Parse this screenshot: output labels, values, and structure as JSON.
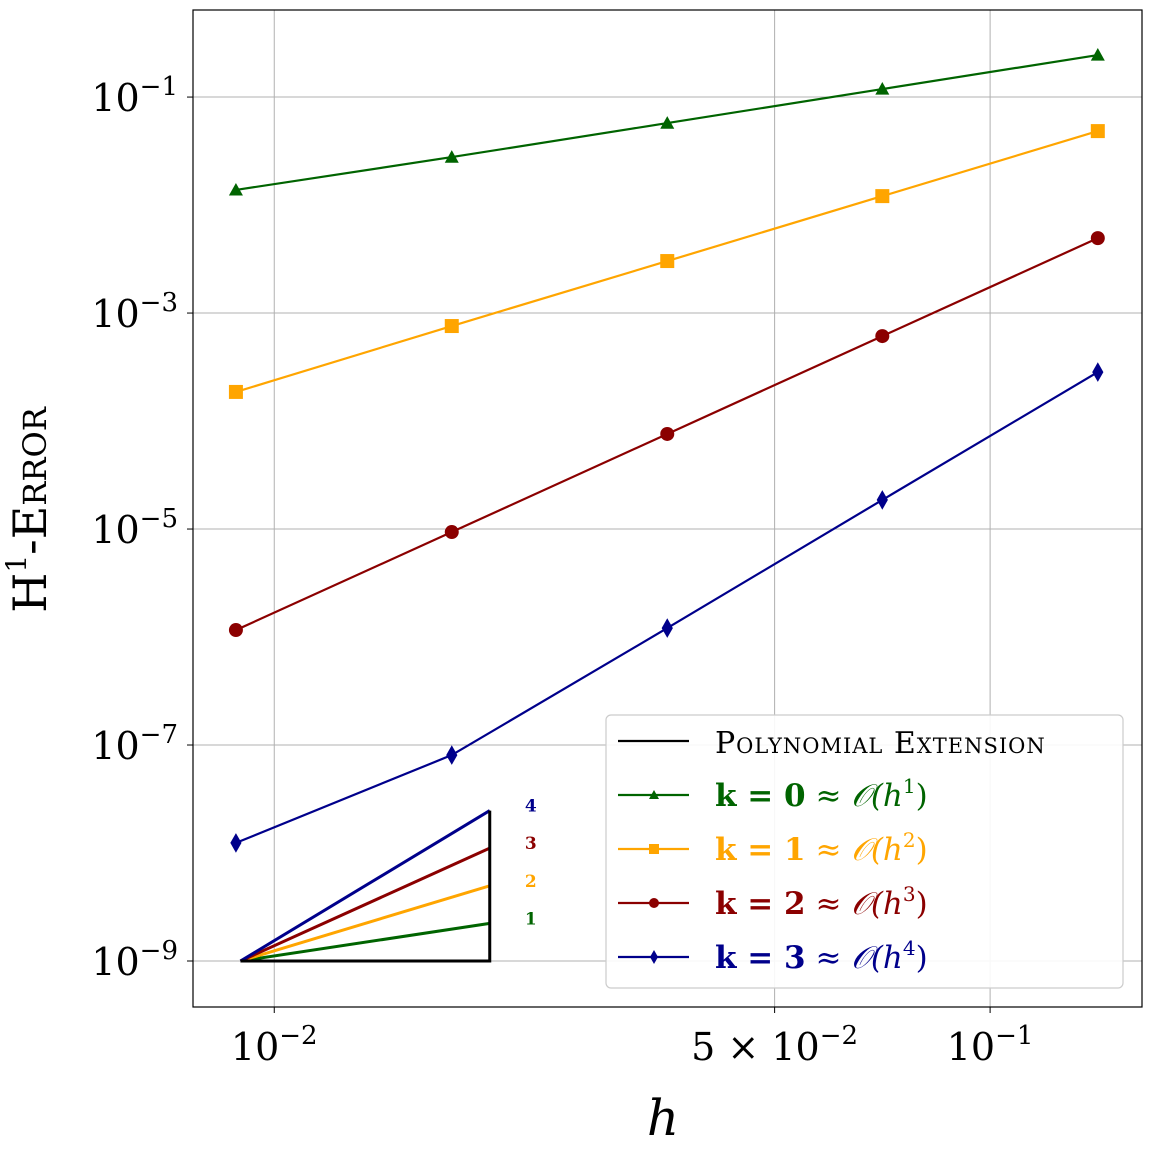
{
  "chart_data": {
    "type": "line",
    "xscale": "log",
    "yscale": "log",
    "xlim": [
      0.0077,
      0.163
    ],
    "ylim": [
      3.75e-10,
      0.64
    ],
    "grid": true,
    "xlabel": "h",
    "ylabel": {
      "main": "H",
      "sup": "1",
      "rest": "-Error"
    },
    "xticks": [
      {
        "value": 0.01,
        "base": "10",
        "exp": "−2",
        "prefix": ""
      },
      {
        "value": 0.05,
        "base": "10",
        "exp": "−2",
        "prefix": "5 × "
      },
      {
        "value": 0.1,
        "base": "10",
        "exp": "−1",
        "prefix": ""
      }
    ],
    "yticks": [
      {
        "value": 0.1,
        "base": "10",
        "exp": "−1"
      },
      {
        "value": 0.001,
        "base": "10",
        "exp": "−3"
      },
      {
        "value": 1e-05,
        "base": "10",
        "exp": "−5"
      },
      {
        "value": 1e-07,
        "base": "10",
        "exp": "−7"
      },
      {
        "value": 1e-09,
        "base": "10",
        "exp": "−9"
      }
    ],
    "x": [
      0.00884,
      0.0177,
      0.0354,
      0.0707,
      0.1414
    ],
    "legend_position": "lower-right",
    "legend_header": "Polynomial Extension",
    "legend_header_color": "#000000",
    "series": [
      {
        "name": "k = 0 ≈ 𝒪(h¹)",
        "k": "k = 0",
        "order": "𝒪(h",
        "exp": "1",
        "color": "#006400",
        "marker": "triangle",
        "values": [
          0.0138,
          0.0278,
          0.0574,
          0.1186,
          0.245
        ]
      },
      {
        "name": "k = 1 ≈ 𝒪(h²)",
        "k": "k = 1",
        "order": "𝒪(h",
        "exp": "2",
        "color": "#FFA500",
        "marker": "square",
        "values": [
          0.000186,
          0.000758,
          0.00303,
          0.0121,
          0.0484
        ]
      },
      {
        "name": "k = 2 ≈ 𝒪(h³)",
        "k": "k = 2",
        "order": "𝒪(h",
        "exp": "3",
        "color": "#8B0000",
        "marker": "circle",
        "values": [
          1.16e-06,
          9.38e-06,
          7.59e-05,
          0.000612,
          0.00494
        ]
      },
      {
        "name": "k = 3 ≈ 𝒪(h⁴)",
        "k": "k = 3",
        "order": "𝒪(h",
        "exp": "4",
        "color": "#00008B",
        "marker": "diamond",
        "values": [
          1.24e-08,
          8.07e-08,
          1.21e-06,
          1.86e-05,
          0.000284
        ]
      }
    ],
    "slope_triangle": {
      "x": [
        0.00897,
        0.02
      ],
      "y0": 1e-09,
      "slopes": [
        {
          "label": "1",
          "slope": 1,
          "color": "#006400"
        },
        {
          "label": "2",
          "slope": 2,
          "color": "#FFA500"
        },
        {
          "label": "3",
          "slope": 3,
          "color": "#8B0000"
        },
        {
          "label": "4",
          "slope": 4,
          "color": "#00008B"
        }
      ]
    }
  }
}
